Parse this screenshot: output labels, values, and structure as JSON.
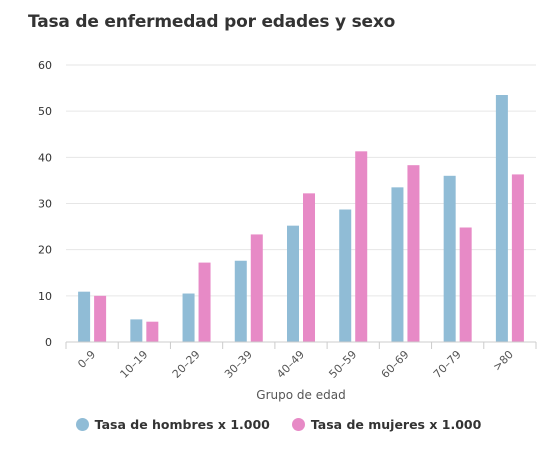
{
  "chart_data": {
    "type": "bar",
    "title": "Tasa de enfermedad por edades y sexo",
    "xlabel": "Grupo de edad",
    "ylabel": "",
    "categories": [
      "0–9",
      "10–19",
      "20–29",
      "30–39",
      "40–49",
      "50–59",
      "60–69",
      "70–79",
      ">80"
    ],
    "series": [
      {
        "name": "Tasa de hombres x 1.000",
        "color": "#90bcd6",
        "values": [
          10.9,
          4.9,
          10.5,
          17.6,
          25.2,
          28.7,
          33.5,
          36.0,
          53.5
        ]
      },
      {
        "name": "Tasa de mujeres x 1.000",
        "color": "#e78ac6",
        "values": [
          10.0,
          4.4,
          17.2,
          23.3,
          32.2,
          41.3,
          38.3,
          24.8,
          36.3
        ]
      }
    ],
    "ylim": [
      0,
      60
    ],
    "yticks": [
      0,
      10,
      20,
      30,
      40,
      50,
      60
    ],
    "grid": true,
    "legend": "bottom"
  }
}
